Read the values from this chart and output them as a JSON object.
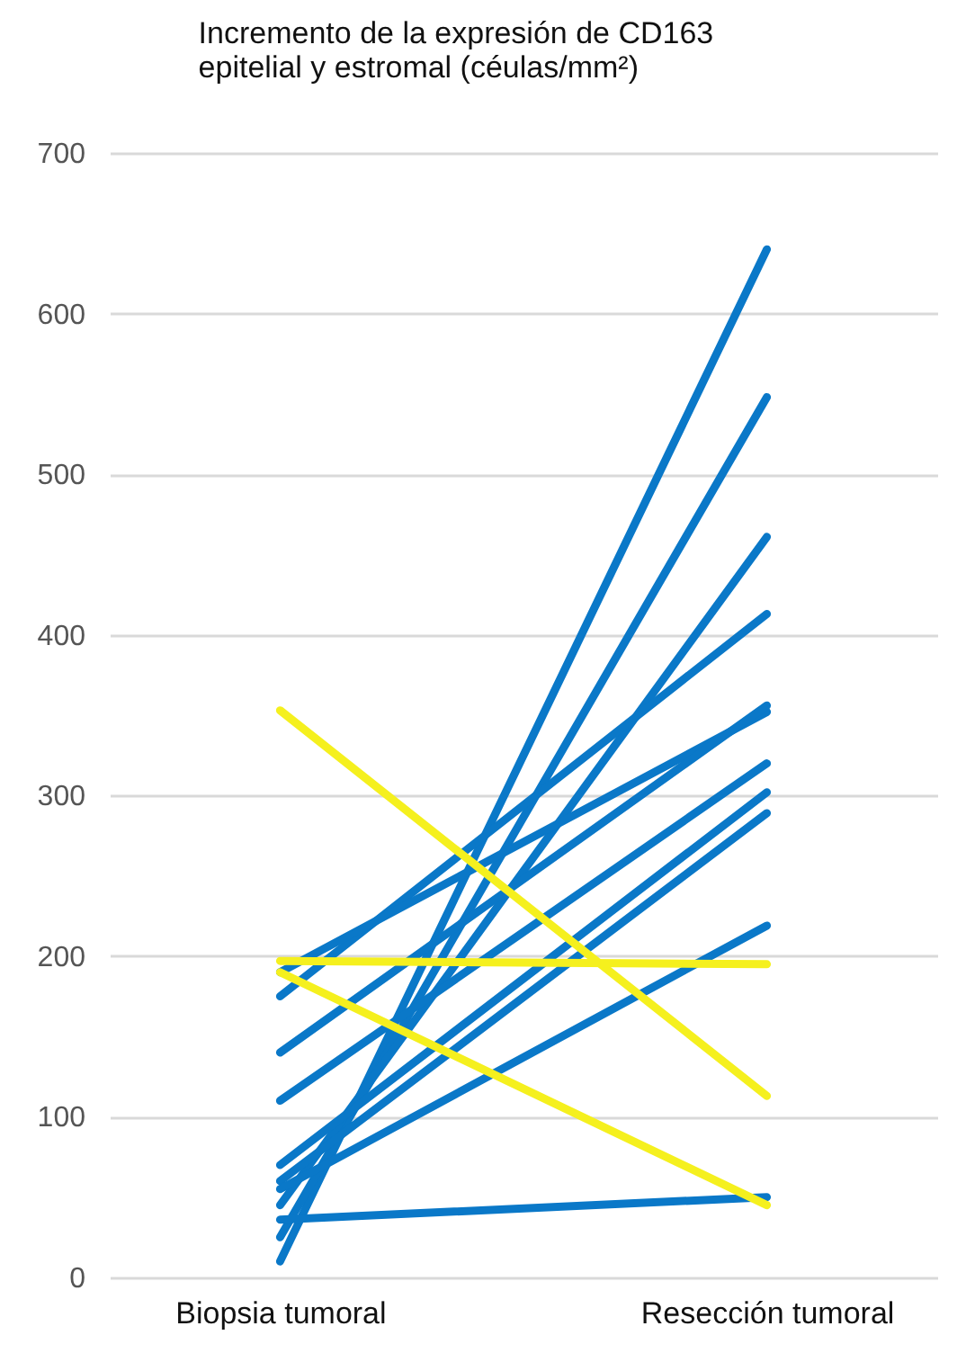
{
  "chart_data": {
    "type": "line",
    "title": [
      "Incremento de la expresión de CD163",
      "epitelial y estromal (céulas/mm²)"
    ],
    "categories": [
      "Biopsia tumoral",
      "Resección tumoral"
    ],
    "series": [
      {
        "color": "#0a78c8",
        "values": [
          10,
          640
        ]
      },
      {
        "color": "#0a78c8",
        "values": [
          25,
          548
        ]
      },
      {
        "color": "#0a78c8",
        "values": [
          45,
          461
        ]
      },
      {
        "color": "#0a78c8",
        "values": [
          175,
          413
        ]
      },
      {
        "color": "#0a78c8",
        "values": [
          190,
          352
        ]
      },
      {
        "color": "#0a78c8",
        "values": [
          140,
          356
        ]
      },
      {
        "color": "#0a78c8",
        "values": [
          110,
          320
        ]
      },
      {
        "color": "#0a78c8",
        "values": [
          70,
          302
        ]
      },
      {
        "color": "#0a78c8",
        "values": [
          60,
          289
        ]
      },
      {
        "color": "#0a78c8",
        "values": [
          55,
          219
        ]
      },
      {
        "color": "#0a78c8",
        "values": [
          36,
          50
        ]
      },
      {
        "color": "#f5f01e",
        "values": [
          353,
          113
        ]
      },
      {
        "color": "#f5f01e",
        "values": [
          197,
          195
        ]
      },
      {
        "color": "#f5f01e",
        "values": [
          190,
          45
        ]
      }
    ],
    "ylim": [
      0,
      700
    ],
    "yticks": [
      0,
      100,
      200,
      300,
      400,
      500,
      600,
      700
    ],
    "grid": "y",
    "marker": "none",
    "line_style": "solid",
    "legend": false
  }
}
